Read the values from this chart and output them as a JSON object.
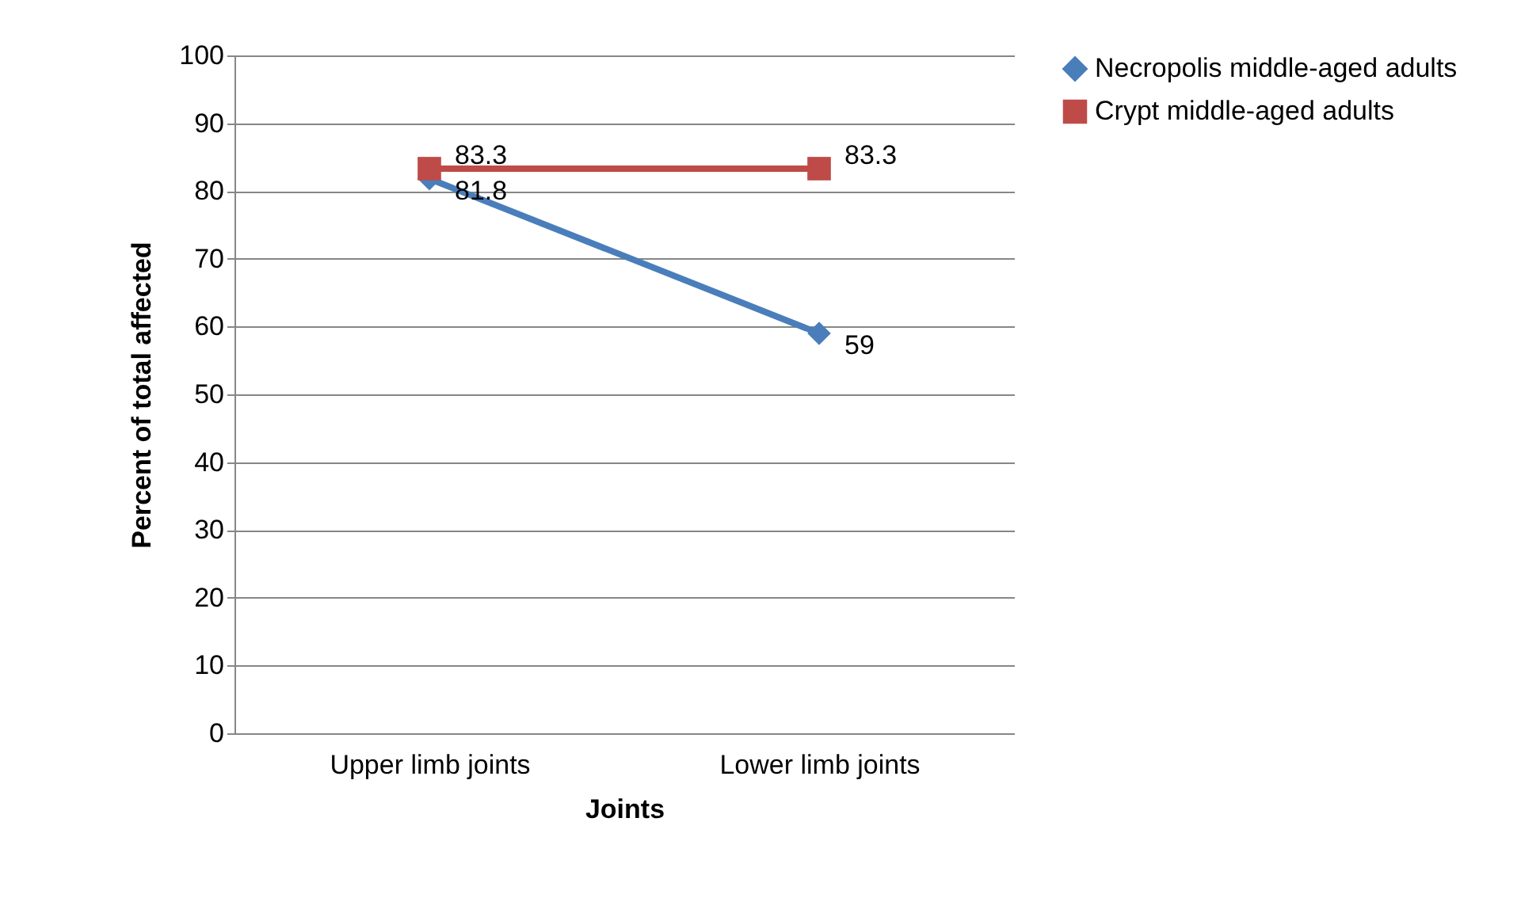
{
  "chart_data": {
    "type": "line",
    "xlabel": "Joints",
    "ylabel": "Percent of total affected",
    "categories": [
      "Upper limb joints",
      "Lower limb joints"
    ],
    "series": [
      {
        "name": "Necropolis middle-aged adults",
        "color": "#4a7ebb",
        "marker": "diamond",
        "values": [
          81.8,
          59
        ]
      },
      {
        "name": "Crypt middle-aged adults",
        "color": "#be4b48",
        "marker": "square",
        "values": [
          83.3,
          83.3
        ]
      }
    ],
    "ylim": [
      0,
      100
    ],
    "yticks": [
      0,
      10,
      20,
      30,
      40,
      50,
      60,
      70,
      80,
      90,
      100
    ],
    "grid": "y",
    "legend": "right",
    "data_labels": true
  }
}
